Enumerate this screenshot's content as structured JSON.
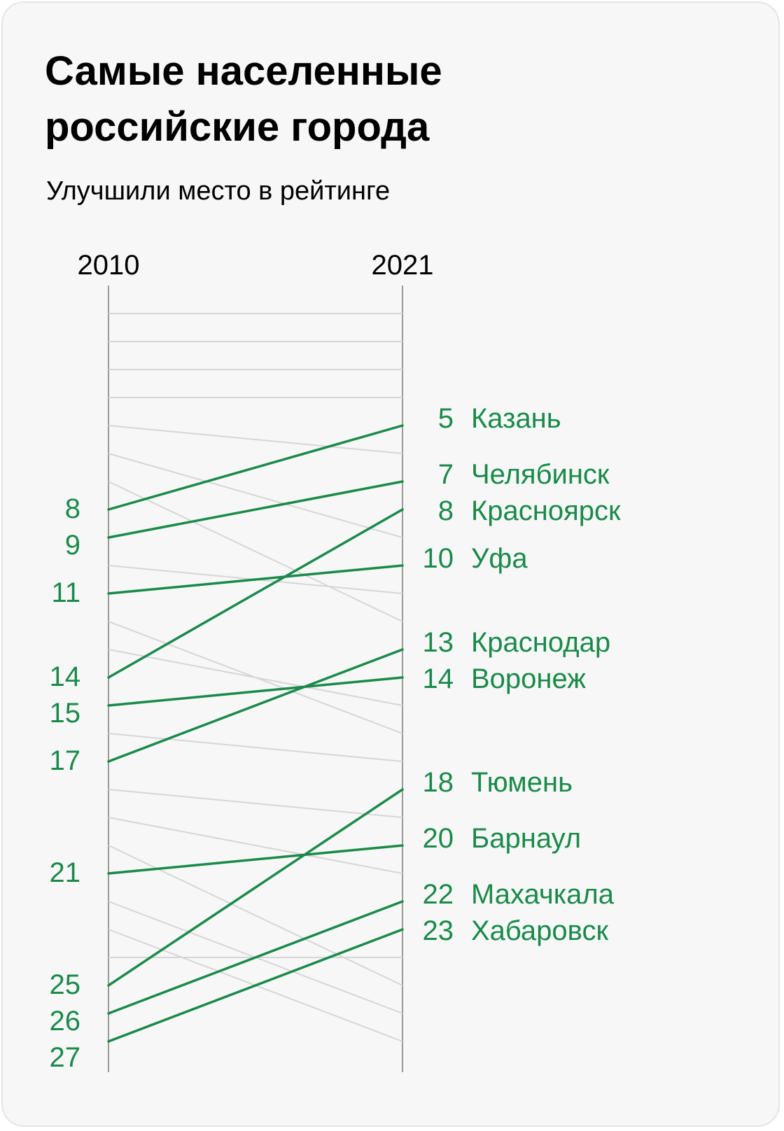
{
  "title": "Самые населенные российские города",
  "subtitle": "Улучшили место в рейтинге",
  "colors": {
    "highlight": "#1a8a4a",
    "other_lines": "#d6d6d6",
    "axis": "#9a9a9a",
    "background": "#f7f7f7"
  },
  "chart_data": {
    "type": "slope",
    "title": "Самые населенные российские города",
    "subtitle": "Улучшили место в рейтинге",
    "x_labels": [
      "2010",
      "2021"
    ],
    "rank_range": [
      1,
      27
    ],
    "rank_axis": "inverted",
    "highlighted": [
      {
        "city": "Казань",
        "rank_2010": 8,
        "rank_2021": 5
      },
      {
        "city": "Челябинск",
        "rank_2010": 9,
        "rank_2021": 7
      },
      {
        "city": "Красноярск",
        "rank_2010": 14,
        "rank_2021": 8
      },
      {
        "city": "Уфа",
        "rank_2010": 11,
        "rank_2021": 10
      },
      {
        "city": "Краснодар",
        "rank_2010": 17,
        "rank_2021": 13
      },
      {
        "city": "Воронеж",
        "rank_2010": 15,
        "rank_2021": 14
      },
      {
        "city": "Тюмень",
        "rank_2010": 25,
        "rank_2021": 18
      },
      {
        "city": "Барнаул",
        "rank_2010": 21,
        "rank_2021": 20
      },
      {
        "city": "Махачкала",
        "rank_2010": 26,
        "rank_2021": 22
      },
      {
        "city": "Хабаровск",
        "rank_2010": 27,
        "rank_2021": 23
      }
    ],
    "others": [
      {
        "rank_2010": 1,
        "rank_2021": 1
      },
      {
        "rank_2010": 2,
        "rank_2021": 2
      },
      {
        "rank_2010": 3,
        "rank_2021": 3
      },
      {
        "rank_2010": 4,
        "rank_2021": 4
      },
      {
        "rank_2010": 5,
        "rank_2021": 6
      },
      {
        "rank_2010": 6,
        "rank_2021": 9
      },
      {
        "rank_2010": 7,
        "rank_2021": 12
      },
      {
        "rank_2010": 10,
        "rank_2021": 11
      },
      {
        "rank_2010": 12,
        "rank_2021": 16
      },
      {
        "rank_2010": 13,
        "rank_2021": 15
      },
      {
        "rank_2010": 16,
        "rank_2021": 17
      },
      {
        "rank_2010": 18,
        "rank_2021": 19
      },
      {
        "rank_2010": 19,
        "rank_2021": 21
      },
      {
        "rank_2010": 20,
        "rank_2021": 25
      },
      {
        "rank_2010": 22,
        "rank_2021": 26
      },
      {
        "rank_2010": 23,
        "rank_2021": 27
      },
      {
        "rank_2010": 24,
        "rank_2021": 24
      }
    ]
  }
}
